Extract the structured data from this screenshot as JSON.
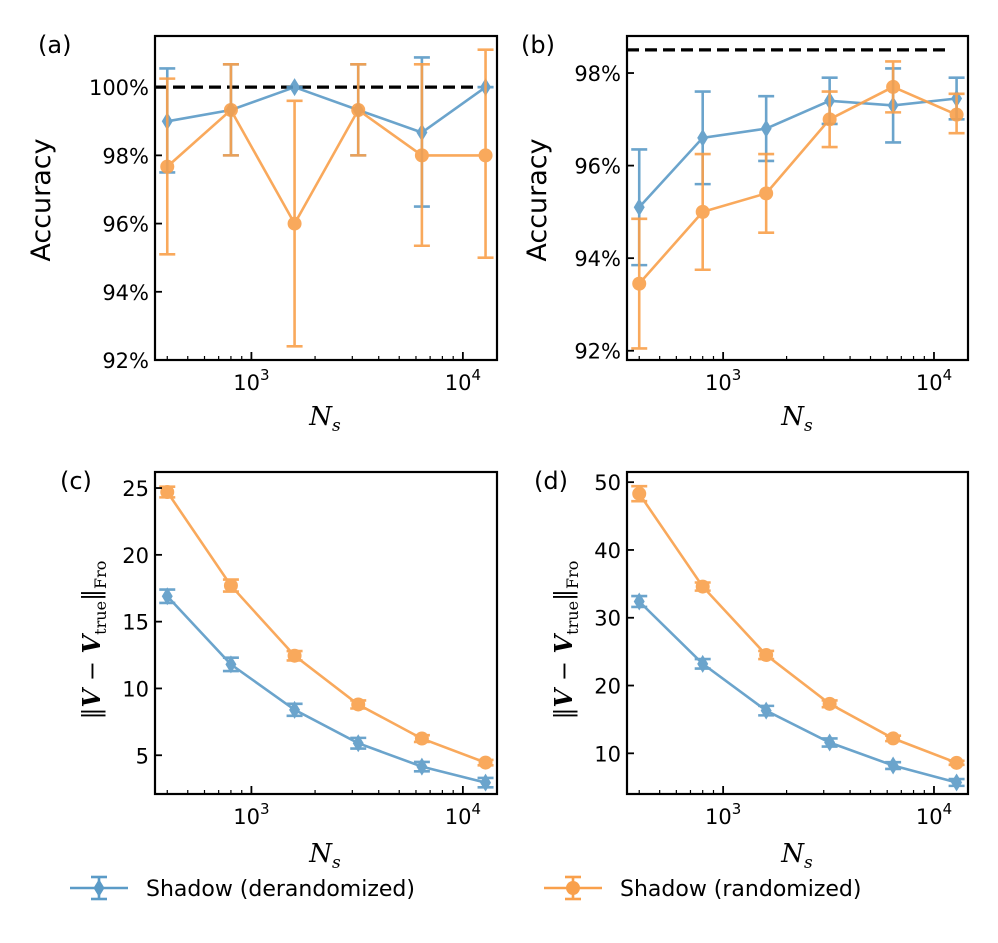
{
  "legend": [
    {
      "label": "Shadow (derandomized)",
      "color": "#5b9bc7",
      "marker": "diamond"
    },
    {
      "label": "Shadow (randomized)",
      "color": "#f9a04b",
      "marker": "circle"
    }
  ],
  "chart_data": [
    {
      "panel": "(a)",
      "type": "line",
      "ylabel": "Accuracy",
      "xlabel": "N_s",
      "xlabel_main": "N",
      "xlabel_sub": "s",
      "xscale": "log",
      "xlim": [
        350,
        14500
      ],
      "ylim": [
        92,
        101.5
      ],
      "xticks": [
        {
          "value": 1000,
          "base": "10",
          "exp": "3"
        },
        {
          "value": 10000,
          "base": "10",
          "exp": "4"
        }
      ],
      "yticks": [
        {
          "value": 92,
          "label": "92%"
        },
        {
          "value": 94,
          "label": "94%"
        },
        {
          "value": 96,
          "label": "96%"
        },
        {
          "value": 98,
          "label": "98%"
        },
        {
          "value": 100,
          "label": "100%"
        }
      ],
      "reference_line": 100,
      "x": [
        400,
        800,
        1600,
        3200,
        6400,
        12800
      ],
      "series": [
        {
          "name": "Shadow (derandomized)",
          "values": [
            99.0,
            99.33,
            100.0,
            99.33,
            98.67,
            100.0
          ],
          "lower": [
            97.5,
            98.0,
            100.0,
            98.0,
            96.5,
            100.0
          ],
          "upper": [
            100.55,
            100.67,
            100.0,
            100.67,
            100.87,
            100.0
          ]
        },
        {
          "name": "Shadow (randomized)",
          "values": [
            97.67,
            99.33,
            96.0,
            99.33,
            98.0,
            98.0
          ],
          "lower": [
            95.1,
            98.0,
            92.4,
            98.0,
            95.35,
            95.0
          ],
          "upper": [
            100.25,
            100.67,
            99.6,
            100.67,
            100.67,
            101.1
          ]
        }
      ]
    },
    {
      "panel": "(b)",
      "type": "line",
      "ylabel": "Accuracy",
      "xlabel": "N_s",
      "xlabel_main": "N",
      "xlabel_sub": "s",
      "xscale": "log",
      "xlim": [
        350,
        14500
      ],
      "ylim": [
        91.8,
        98.8
      ],
      "xticks": [
        {
          "value": 1000,
          "base": "10",
          "exp": "3"
        },
        {
          "value": 10000,
          "base": "10",
          "exp": "4"
        }
      ],
      "yticks": [
        {
          "value": 92,
          "label": "92%"
        },
        {
          "value": 94,
          "label": "94%"
        },
        {
          "value": 96,
          "label": "96%"
        },
        {
          "value": 98,
          "label": "98%"
        }
      ],
      "reference_line": 98.5,
      "x": [
        400,
        800,
        1600,
        3200,
        6400,
        12800
      ],
      "series": [
        {
          "name": "Shadow (derandomized)",
          "values": [
            95.1,
            96.6,
            96.8,
            97.4,
            97.3,
            97.45
          ],
          "lower": [
            93.85,
            95.6,
            96.1,
            96.9,
            96.5,
            97.0
          ],
          "upper": [
            96.35,
            97.6,
            97.5,
            97.9,
            98.1,
            97.9
          ]
        },
        {
          "name": "Shadow (randomized)",
          "values": [
            93.45,
            95.0,
            95.4,
            97.0,
            97.7,
            97.1
          ],
          "lower": [
            92.05,
            93.75,
            94.55,
            96.4,
            97.15,
            96.7
          ],
          "upper": [
            94.85,
            96.25,
            96.25,
            97.6,
            98.25,
            97.55
          ]
        }
      ]
    },
    {
      "panel": "(c)",
      "type": "line",
      "ylabel": "||V − V_true||_Fro",
      "ylabel_parts": {
        "open": "‖",
        "v": "V",
        "minus": " − ",
        "v2": "V",
        "sub_true": "true",
        "close": "‖",
        "sub_fro": "Fro"
      },
      "xlabel": "N_s",
      "xlabel_main": "N",
      "xlabel_sub": "s",
      "xscale": "log",
      "xlim": [
        350,
        14500
      ],
      "ylim": [
        2.1,
        26.2
      ],
      "xticks": [
        {
          "value": 1000,
          "base": "10",
          "exp": "3"
        },
        {
          "value": 10000,
          "base": "10",
          "exp": "4"
        }
      ],
      "yticks": [
        {
          "value": 5,
          "label": "5"
        },
        {
          "value": 10,
          "label": "10"
        },
        {
          "value": 15,
          "label": "15"
        },
        {
          "value": 20,
          "label": "20"
        },
        {
          "value": 25,
          "label": "25"
        }
      ],
      "x": [
        400,
        800,
        1600,
        3200,
        6400,
        12800
      ],
      "series": [
        {
          "name": "Shadow (derandomized)",
          "values": [
            16.9,
            11.8,
            8.4,
            5.9,
            4.15,
            2.95
          ],
          "lower": [
            16.4,
            11.3,
            7.95,
            5.5,
            3.8,
            2.6
          ],
          "upper": [
            17.4,
            12.3,
            8.85,
            6.3,
            4.5,
            3.3
          ]
        },
        {
          "name": "Shadow (randomized)",
          "values": [
            24.7,
            17.7,
            12.45,
            8.8,
            6.25,
            4.45
          ],
          "lower": [
            24.3,
            17.25,
            12.1,
            8.5,
            6.0,
            4.25
          ],
          "upper": [
            25.1,
            18.15,
            12.8,
            9.1,
            6.5,
            4.65
          ]
        }
      ]
    },
    {
      "panel": "(d)",
      "type": "line",
      "ylabel": "||V − V_true||_Fro",
      "ylabel_parts": {
        "open": "‖",
        "v": "V",
        "minus": " − ",
        "v2": "V",
        "sub_true": "true",
        "close": "‖",
        "sub_fro": "Fro"
      },
      "xlabel": "N_s",
      "xlabel_main": "N",
      "xlabel_sub": "s",
      "xscale": "log",
      "xlim": [
        350,
        14500
      ],
      "ylim": [
        4,
        51.5
      ],
      "xticks": [
        {
          "value": 1000,
          "base": "10",
          "exp": "3"
        },
        {
          "value": 10000,
          "base": "10",
          "exp": "4"
        }
      ],
      "yticks": [
        {
          "value": 10,
          "label": "10"
        },
        {
          "value": 20,
          "label": "20"
        },
        {
          "value": 30,
          "label": "30"
        },
        {
          "value": 40,
          "label": "40"
        },
        {
          "value": 50,
          "label": "50"
        }
      ],
      "x": [
        400,
        800,
        1600,
        3200,
        6400,
        12800
      ],
      "series": [
        {
          "name": "Shadow (derandomized)",
          "values": [
            32.4,
            23.2,
            16.3,
            11.6,
            8.2,
            5.7
          ],
          "lower": [
            31.6,
            22.5,
            15.6,
            11.0,
            7.7,
            5.2
          ],
          "upper": [
            33.2,
            23.9,
            17.0,
            12.2,
            8.7,
            6.2
          ]
        },
        {
          "name": "Shadow (randomized)",
          "values": [
            48.3,
            34.6,
            24.5,
            17.3,
            12.2,
            8.6
          ],
          "lower": [
            47.2,
            34.0,
            23.9,
            16.8,
            11.8,
            8.3
          ],
          "upper": [
            49.4,
            35.2,
            25.1,
            17.8,
            12.6,
            8.9
          ]
        }
      ]
    }
  ]
}
